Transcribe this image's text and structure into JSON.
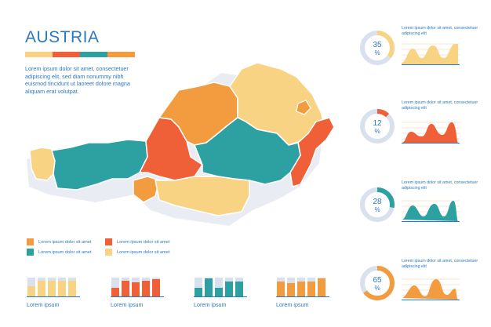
{
  "title": "AUSTRIA",
  "colors": {
    "yellow": "#f8d383",
    "orange": "#f39b3f",
    "red": "#ef6039",
    "teal": "#2da1a1",
    "blue": "#2b79c0",
    "track": "#d9e1ee"
  },
  "description": "Lorem ipsum dolor sit amet, consectetuer adipiscing elit, sed diam nonummy nibh euismod tincidunt ut laoreet dolore magna aliquam erat volutpat.",
  "legend": [
    {
      "label": "Lorem ipsum dolor sit amet",
      "color": "#f39b3f"
    },
    {
      "label": "Lorem ipsum dolor sit amet",
      "color": "#ef6039"
    },
    {
      "label": "Lorem ipsum dolor sit amet",
      "color": "#2da1a1"
    },
    {
      "label": "Lorem ipsum dolor sit amet",
      "color": "#f8d383"
    }
  ],
  "bottom_charts": [
    {
      "label": "Lorem ipsum",
      "color": "#f8d383",
      "values": [
        0.55,
        0.85,
        0.85,
        0.85,
        0.85
      ]
    },
    {
      "label": "Lorem ipsum",
      "color": "#ef6039",
      "values": [
        0.45,
        0.85,
        0.75,
        0.85,
        0.9
      ]
    },
    {
      "label": "Lorem ipsum",
      "color": "#2da1a1",
      "values": [
        0.45,
        0.95,
        0.45,
        0.8,
        0.8
      ]
    },
    {
      "label": "Lorem ipsum",
      "color": "#f39b3f",
      "values": [
        0.8,
        0.7,
        0.8,
        0.8,
        0.95
      ]
    }
  ],
  "side_panels": [
    {
      "percent": 35,
      "label": "35\n%",
      "color": "#f8d383",
      "text": "Lorem ipsum dolor sit amet, consectetuer adipiscing elit",
      "curve": "yellow"
    },
    {
      "percent": 12,
      "label": "12\n%",
      "color": "#ef6039",
      "text": "Lorem ipsum dolor sit amet, consectetuer adipiscing elit",
      "curve": "red"
    },
    {
      "percent": 28,
      "label": "28\n%",
      "color": "#2da1a1",
      "text": "Lorem ipsum dolor sit amet, consectetuer adipiscing elit",
      "curve": "teal"
    },
    {
      "percent": 65,
      "label": "65\n%",
      "color": "#f39b3f",
      "text": "Lorem ipsum dolor sit amet, consectetuer adipiscing elit",
      "curve": "orange"
    }
  ]
}
